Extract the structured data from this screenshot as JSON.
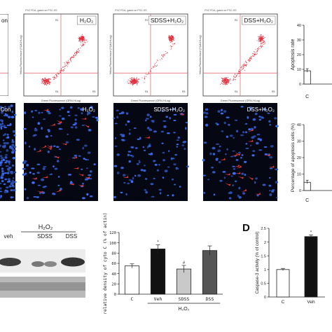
{
  "flow": {
    "panels": [
      {
        "title": "",
        "corner_label": "on",
        "header": "",
        "partial": true
      },
      {
        "title": "H₂O₂",
        "header": "FSC FDA, gated on FSC-SS",
        "partial": false
      },
      {
        "title": "SDSS+H₂O₂",
        "header": "FSC FDA, gated on FSC-SS",
        "partial": false
      },
      {
        "title": "DSS+H₂O₂",
        "header": "FSC FDA, gated on FSC-SS",
        "partial": false
      }
    ],
    "axis_y": "Yellow Fluorescence (YLW-HLog)",
    "axis_x": "Green Fluorescence (GRN-HLog)",
    "quadrant_labels": [
      "R2",
      "R3",
      "R4",
      "R5"
    ]
  },
  "micro": {
    "panels": [
      {
        "label": "Con"
      },
      {
        "label": "H₂O₂"
      },
      {
        "label": "SDSS+H₂O₂"
      },
      {
        "label": "DSS+H₂O₂"
      }
    ]
  },
  "chart_data": [
    {
      "type": "bar",
      "title": "",
      "ylabel": "Apoptosis rate",
      "categories": [
        "C"
      ],
      "values": [
        9
      ],
      "ylim": [
        0,
        40
      ],
      "yticks": [
        "0",
        "10",
        "20",
        "30",
        "40"
      ]
    },
    {
      "type": "bar",
      "title": "",
      "ylabel": "Percentage of apoptosis cells (%)",
      "categories": [
        "C"
      ],
      "values": [
        5
      ],
      "ylim": [
        0,
        40
      ],
      "yticks": [
        "0",
        "10",
        "20",
        "30",
        "40"
      ]
    },
    {
      "type": "bar",
      "title": "",
      "ylabel": "relative density of cyto C (% of actin)",
      "categories": [
        "C",
        "Veh",
        "SDSS",
        "DSS"
      ],
      "group_label": "H₂O₂",
      "values": [
        55,
        88,
        49,
        85
      ],
      "errors": [
        4,
        8,
        7,
        9
      ],
      "colors": [
        "#ffffff",
        "#111111",
        "#c9c9c9",
        "#555555"
      ],
      "markers": [
        "",
        "*",
        "#",
        ""
      ],
      "ylim": [
        0,
        120
      ],
      "yticks": [
        "0",
        "20",
        "40",
        "60",
        "80",
        "100",
        "120"
      ]
    },
    {
      "type": "bar",
      "title": "",
      "ylabel": "Caspase-3 activity (% of control)",
      "categories": [
        "C",
        "Veh"
      ],
      "values": [
        1.0,
        2.2
      ],
      "errors": [
        0.04,
        0.06
      ],
      "colors": [
        "#ffffff",
        "#111111"
      ],
      "markers": [
        "",
        "*"
      ],
      "ylim": [
        0,
        2.5
      ],
      "yticks": [
        "0",
        "0.5",
        "1",
        "1.5",
        "2",
        "2.5"
      ]
    }
  ],
  "western": {
    "group_label": "H₂O₂",
    "lanes": [
      "veh",
      "SDSS",
      "DSS"
    ]
  },
  "panel_letters": {
    "d": "D"
  }
}
